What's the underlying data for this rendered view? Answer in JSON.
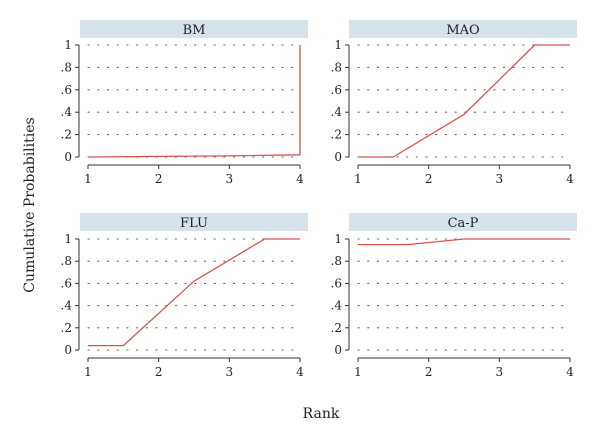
{
  "figure": {
    "ylabel": "Cumulative Probabilities",
    "xlabel": "Rank"
  },
  "style": {
    "line_color": "#d9534f",
    "header_bg": "#d6e3ea",
    "axis_color": "#333333",
    "grid_dot_color": "#666666"
  },
  "chart_data": [
    {
      "type": "line",
      "title": "BM",
      "x": [
        1,
        2,
        3,
        4,
        4
      ],
      "y": [
        0,
        0.005,
        0.01,
        0.02,
        1
      ],
      "xlim": [
        1,
        4
      ],
      "ylim": [
        0,
        1
      ],
      "xticks": [
        "1",
        "2",
        "3",
        "4"
      ],
      "yticks": [
        "0",
        ".2",
        ".4",
        ".6",
        ".8",
        "1"
      ],
      "grid": true
    },
    {
      "type": "line",
      "title": "MAO",
      "x": [
        1,
        1.5,
        2.5,
        3.5,
        4
      ],
      "y": [
        0,
        0,
        0.38,
        1,
        1
      ],
      "xlim": [
        1,
        4
      ],
      "ylim": [
        0,
        1
      ],
      "xticks": [
        "1",
        "2",
        "3",
        "4"
      ],
      "yticks": [
        "0",
        ".2",
        ".4",
        ".6",
        ".8",
        "1"
      ],
      "grid": true
    },
    {
      "type": "line",
      "title": "FLU",
      "x": [
        1,
        1.5,
        2.5,
        3.5,
        4
      ],
      "y": [
        0.04,
        0.04,
        0.62,
        1,
        1
      ],
      "xlim": [
        1,
        4
      ],
      "ylim": [
        0,
        1
      ],
      "xticks": [
        "1",
        "2",
        "3",
        "4"
      ],
      "yticks": [
        "0",
        ".2",
        ".4",
        ".6",
        ".8",
        "1"
      ],
      "grid": true
    },
    {
      "type": "line",
      "title": "Ca-P",
      "x": [
        1,
        1.7,
        2.5,
        4
      ],
      "y": [
        0.95,
        0.95,
        1,
        1
      ],
      "xlim": [
        1,
        4
      ],
      "ylim": [
        0,
        1
      ],
      "xticks": [
        "1",
        "2",
        "3",
        "4"
      ],
      "yticks": [
        "0",
        ".2",
        ".4",
        ".6",
        ".8",
        "1"
      ],
      "grid": true
    }
  ]
}
